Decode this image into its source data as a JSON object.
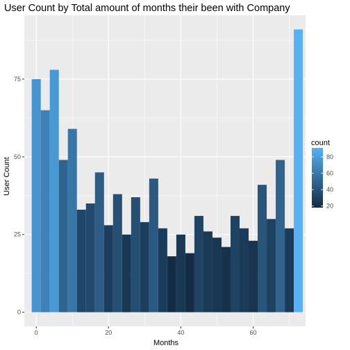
{
  "chart_data": {
    "type": "bar",
    "title": "User Count by Total amount of months their been with Company",
    "xlabel": "Months",
    "ylabel": "User Count",
    "bin_width": 2.5,
    "x": [
      0,
      2.5,
      5,
      7.5,
      10,
      12.5,
      15,
      17.5,
      20,
      22.5,
      25,
      27.5,
      30,
      32.5,
      35,
      37.5,
      40,
      42.5,
      45,
      47.5,
      50,
      52.5,
      55,
      57.5,
      60,
      62.5,
      65,
      67.5,
      70,
      72.5
    ],
    "values": [
      75,
      65,
      78,
      49,
      59,
      33,
      35,
      45,
      28,
      38,
      25,
      37,
      29,
      43,
      27,
      18,
      25,
      19,
      31,
      26,
      24,
      21,
      31,
      27,
      23,
      41,
      30,
      49,
      27,
      91
    ],
    "xlim": [
      -3.3,
      74.5
    ],
    "ylim": [
      -4.55,
      95.55
    ],
    "x_ticks": [
      0,
      20,
      40,
      60
    ],
    "x_tick_labels": [
      "0",
      "20",
      "40",
      "60"
    ],
    "y_ticks": [
      0,
      25,
      50,
      75
    ],
    "y_tick_labels": [
      "0",
      "25",
      "50",
      "75"
    ],
    "grid": true,
    "panel_background": "#ebebeb",
    "grid_color": "#ffffff",
    "legend": {
      "title": "count",
      "placement": "right",
      "min": 18,
      "max": 91,
      "breaks": [
        20,
        40,
        60,
        80
      ],
      "break_labels": [
        "20",
        "40",
        "60",
        "80"
      ],
      "low_color": "#132b43",
      "high_color": "#56b1f7"
    }
  }
}
